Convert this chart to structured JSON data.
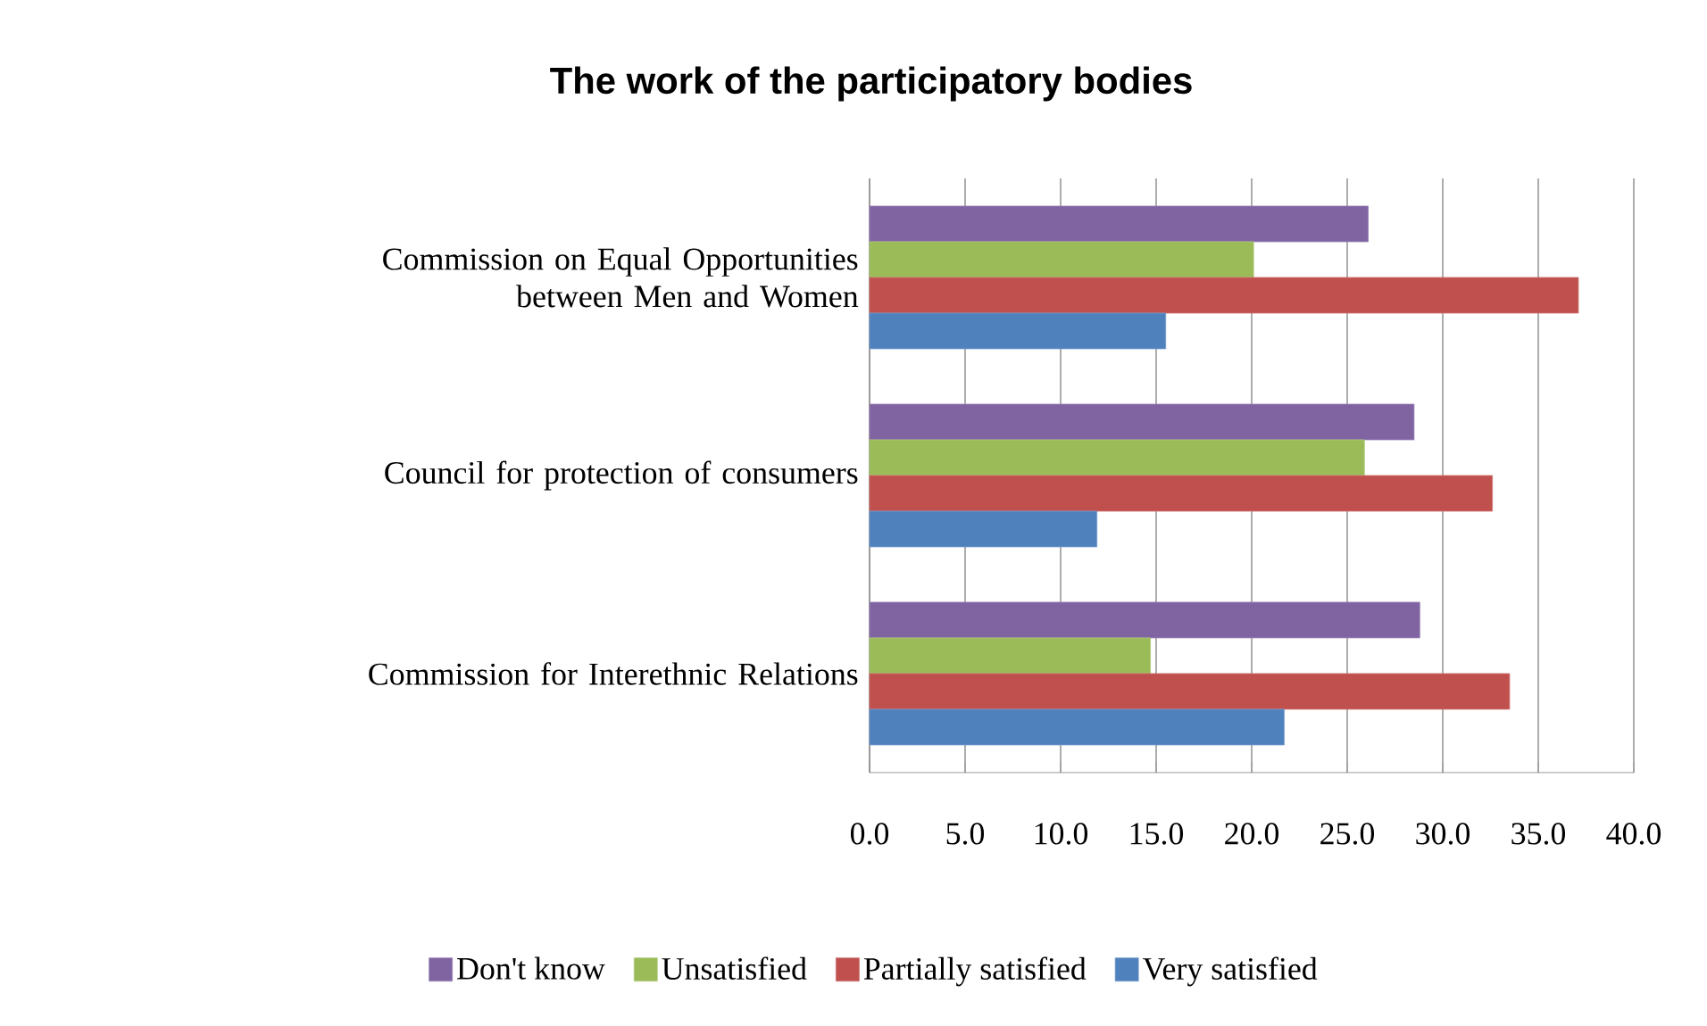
{
  "chart_data": {
    "type": "bar",
    "orientation": "horizontal",
    "title": "The work of the participatory bodies",
    "categories": [
      "Commission on Equal Opportunities between Men and Women",
      "Council for protection of consumers",
      "Commission for Interethnic Relations"
    ],
    "series": [
      {
        "name": "Don't know",
        "color": "#8064a2",
        "values": [
          26.1,
          28.5,
          28.8
        ]
      },
      {
        "name": "Unsatisfied",
        "color": "#9bbb59",
        "values": [
          20.1,
          25.9,
          14.7
        ]
      },
      {
        "name": "Partially satisfied",
        "color": "#c0504d",
        "values": [
          37.1,
          32.6,
          33.5
        ]
      },
      {
        "name": "Very satisfied",
        "color": "#4f81bd",
        "values": [
          15.5,
          11.9,
          21.7
        ]
      }
    ],
    "xlim": [
      0,
      40
    ],
    "xticks": [
      {
        "value": 0,
        "label": "0.0"
      },
      {
        "value": 5,
        "label": "5.0"
      },
      {
        "value": 10,
        "label": "10.0"
      },
      {
        "value": 15,
        "label": "15.0"
      },
      {
        "value": 20,
        "label": "20.0"
      },
      {
        "value": 25,
        "label": "25.0"
      },
      {
        "value": 30,
        "label": "30.0"
      },
      {
        "value": 35,
        "label": "35.0"
      },
      {
        "value": 40,
        "label": "40.0"
      }
    ],
    "grid": "x",
    "legend": "bottom"
  }
}
